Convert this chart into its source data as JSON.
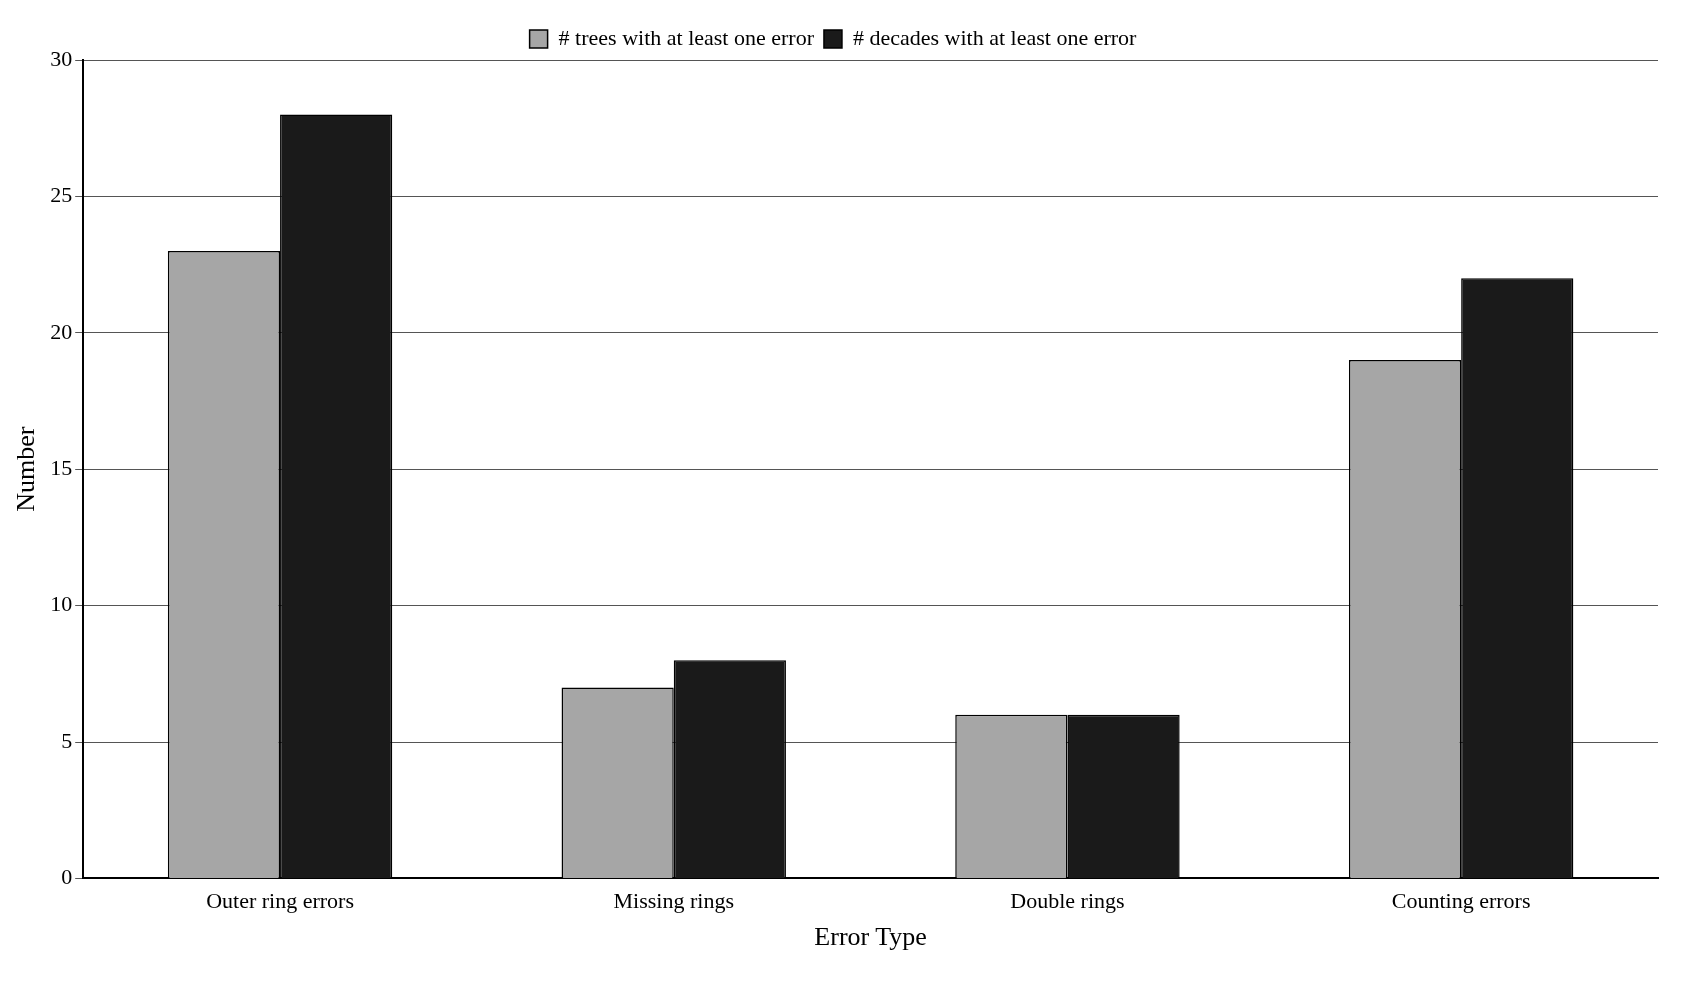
{
  "chart_data": {
    "type": "bar",
    "xlabel": "Error Type",
    "ylabel": "Number",
    "categories": [
      "Outer ring errors",
      "Missing rings",
      "Double rings",
      "Counting errors"
    ],
    "series": [
      {
        "name": "# trees with at least one error",
        "color": "#a6a6a6",
        "values": [
          23,
          7,
          6,
          19
        ]
      },
      {
        "name": "# decades with at least one error",
        "color": "#1a1a1a",
        "values": [
          28,
          8,
          6,
          22
        ]
      }
    ],
    "ylim": [
      0,
      30
    ],
    "yticks": [
      0,
      5,
      10,
      15,
      20,
      25,
      30
    ],
    "grid": "y",
    "legend": "top"
  }
}
